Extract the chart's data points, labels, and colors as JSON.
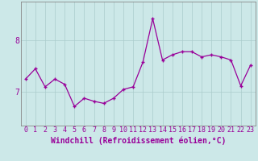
{
  "x": [
    0,
    1,
    2,
    3,
    4,
    5,
    6,
    7,
    8,
    9,
    10,
    11,
    12,
    13,
    14,
    15,
    16,
    17,
    18,
    19,
    20,
    21,
    22,
    23
  ],
  "y": [
    7.25,
    7.45,
    7.1,
    7.25,
    7.15,
    6.72,
    6.88,
    6.82,
    6.78,
    6.88,
    7.05,
    7.1,
    7.58,
    8.42,
    7.62,
    7.72,
    7.78,
    7.78,
    7.68,
    7.72,
    7.68,
    7.62,
    7.12,
    7.52
  ],
  "line_color": "#990099",
  "marker": "+",
  "marker_size": 3,
  "marker_lw": 1.0,
  "bg_color": "#cce8e8",
  "grid_color": "#aacccc",
  "xlabel": "Windchill (Refroidissement éolien,°C)",
  "xlabel_color": "#990099",
  "xlabel_fontsize": 7,
  "tick_color": "#990099",
  "tick_fontsize": 6,
  "ytick_fontsize": 7,
  "yticks": [
    7,
    8
  ],
  "ylim": [
    6.35,
    8.75
  ],
  "xlim": [
    -0.5,
    23.5
  ],
  "line_width": 0.9
}
